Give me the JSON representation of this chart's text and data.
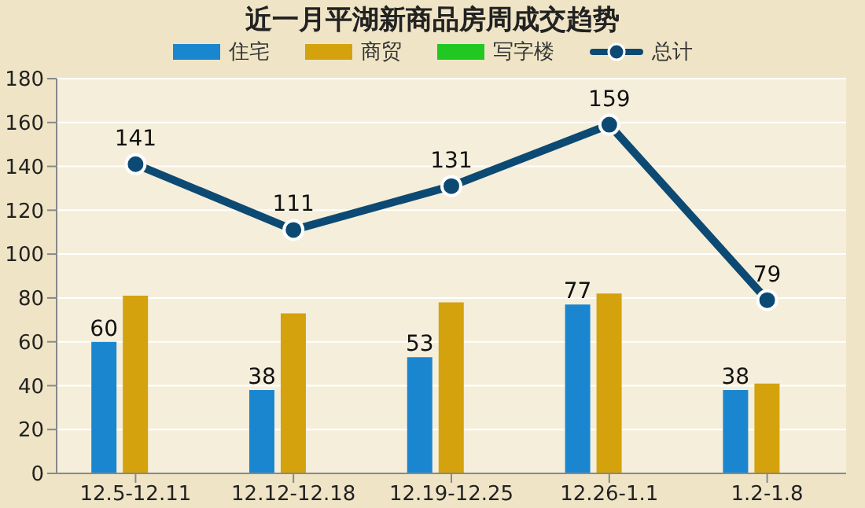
{
  "chart_data": {
    "type": "bar",
    "title": "近一月平湖新商品房周成交趋势",
    "categories": [
      "12.5-12.11",
      "12.12-12.18",
      "12.19-12.25",
      "12.26-1.1",
      "1.2-1.8"
    ],
    "series": [
      {
        "name": "住宅",
        "color": "#1a86d0",
        "values": [
          60,
          38,
          53,
          77,
          38
        ],
        "value_labels": [
          "60",
          "38",
          "53",
          "77",
          "38"
        ]
      },
      {
        "name": "商贸",
        "color": "#d4a20c",
        "values": [
          81,
          73,
          78,
          82,
          41
        ]
      },
      {
        "name": "写字楼",
        "color": "#22c822",
        "values": [
          0,
          0,
          0,
          0,
          0
        ]
      },
      {
        "name": "总计",
        "type": "line",
        "color": "#0d4a73",
        "marker": "circle",
        "values": [
          141,
          111,
          131,
          159,
          79
        ],
        "value_labels": [
          "141",
          "111",
          "131",
          "159",
          "79"
        ]
      }
    ],
    "ylim": [
      0,
      180
    ],
    "yticks": [
      0,
      20,
      40,
      60,
      80,
      100,
      120,
      140,
      160,
      180
    ],
    "grid": "y",
    "legend": "top"
  }
}
